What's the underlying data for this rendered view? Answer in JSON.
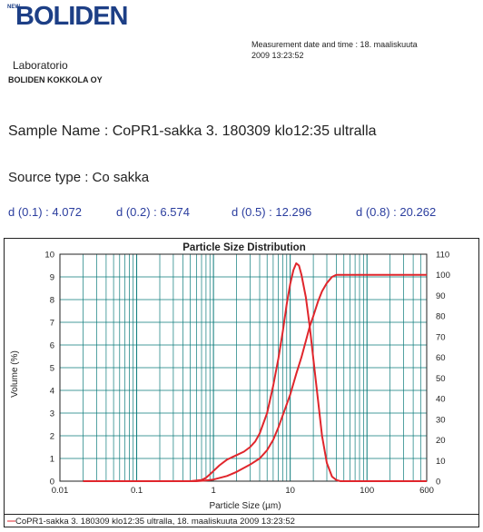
{
  "header": {
    "logo_new": "NEW",
    "logo_text": "BOLIDEN",
    "measurement_line1": "Measurement date and time : 18. maaliskuuta",
    "measurement_line2": "2009 13:23:52",
    "lab": "Laboratorio",
    "company": "BOLIDEN KOKKOLA OY"
  },
  "sample": {
    "name": "Sample Name : CoPR1-sakka 3. 180309 klo12:35 ultralla",
    "source": "Source type : Co sakka"
  },
  "percentiles": [
    {
      "label": "d (0.1) : 4.072"
    },
    {
      "label": "d (0.2) : 6.574"
    },
    {
      "label": "d (0.5) : 12.296"
    },
    {
      "label": "d (0.8) : 20.262"
    }
  ],
  "colors": {
    "series": "#e0262c",
    "grid": "#0a7a7a",
    "brand": "#1d3f86",
    "accent_text": "#2a3d9e"
  },
  "chart_data": {
    "type": "line",
    "title": "Particle Size Distribution",
    "xlabel": "Particle Size (µm)",
    "ylabel": "Volume (%)",
    "xscale": "log",
    "xlim": [
      0.01,
      600
    ],
    "ylim": [
      0,
      10
    ],
    "y2lim": [
      0,
      110
    ],
    "grid": true,
    "x_tick_labels": [
      "0.01",
      "0.1",
      "1",
      "10",
      "100",
      "600"
    ],
    "y_tick_labels": [
      "0",
      "1",
      "2",
      "3",
      "4",
      "5",
      "6",
      "7",
      "8",
      "9",
      "10"
    ],
    "y2_tick_labels": [
      "0",
      "10",
      "20",
      "30",
      "40",
      "50",
      "60",
      "70",
      "80",
      "90",
      "100",
      "110"
    ],
    "series": [
      {
        "axis": "left",
        "x": [
          0.02,
          0.5,
          0.7,
          0.8,
          0.9,
          1.0,
          1.2,
          1.5,
          2.0,
          2.5,
          3.0,
          3.5,
          4.0,
          5.0,
          6.0,
          7.0,
          8.0,
          9.0,
          10.0,
          11.0,
          12.0,
          13.0,
          14.0,
          16.0,
          18.0,
          20.0,
          23.0,
          26.0,
          30.0,
          35.0,
          40.0,
          45.0,
          600
        ],
        "y": [
          0,
          0,
          0.05,
          0.15,
          0.3,
          0.45,
          0.7,
          0.95,
          1.15,
          1.3,
          1.5,
          1.75,
          2.1,
          3.0,
          4.2,
          5.4,
          6.6,
          7.8,
          8.7,
          9.3,
          9.6,
          9.5,
          9.1,
          8.1,
          6.8,
          5.4,
          3.6,
          2.0,
          0.8,
          0.2,
          0.05,
          0,
          0
        ]
      },
      {
        "axis": "right",
        "x": [
          0.02,
          0.6,
          0.8,
          1.0,
          1.5,
          2.0,
          3.0,
          4.0,
          5.0,
          6.0,
          7.0,
          8.0,
          10.0,
          12.0,
          14.0,
          16.0,
          18.0,
          20.0,
          23.0,
          26.0,
          30.0,
          35.0,
          40.0,
          50.0,
          600
        ],
        "y": [
          0,
          0,
          0.3,
          0.8,
          2.5,
          4.5,
          8,
          11,
          15,
          20,
          26,
          32,
          42,
          52,
          60,
          68,
          75,
          80,
          87,
          92,
          96,
          99,
          100,
          100,
          100
        ]
      }
    ],
    "legend_entry": "CoPR1-sakka 3. 180309 klo12:35 ultralla, 18. maaliskuuta 2009 13:23:52"
  }
}
